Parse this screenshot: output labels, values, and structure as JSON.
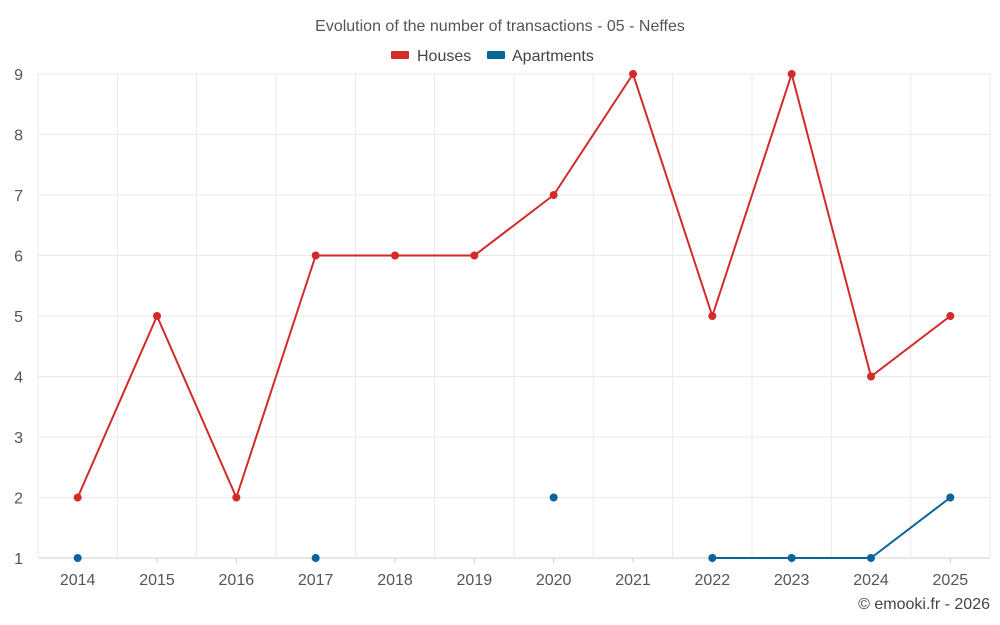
{
  "chart_data": {
    "type": "line",
    "title": "Evolution of the number of transactions - 05 - Neffes",
    "categories": [
      "2014",
      "2015",
      "2016",
      "2017",
      "2018",
      "2019",
      "2020",
      "2021",
      "2022",
      "2023",
      "2024",
      "2025"
    ],
    "ylim": [
      1,
      9
    ],
    "yticks": [
      "1",
      "2",
      "3",
      "4",
      "5",
      "6",
      "7",
      "8",
      "9"
    ],
    "grid": true,
    "legend_position": "top-center",
    "series": [
      {
        "name": "Houses",
        "color": "#d32a2a",
        "values": [
          2,
          5,
          2,
          6,
          6,
          6,
          7,
          9,
          5,
          9,
          4,
          5
        ]
      },
      {
        "name": "Apartments",
        "color": "#0a6499",
        "values": [
          1,
          null,
          null,
          1,
          null,
          null,
          2,
          null,
          1,
          1,
          1,
          2
        ]
      }
    ],
    "credit": "© emooki.fr - 2026"
  }
}
